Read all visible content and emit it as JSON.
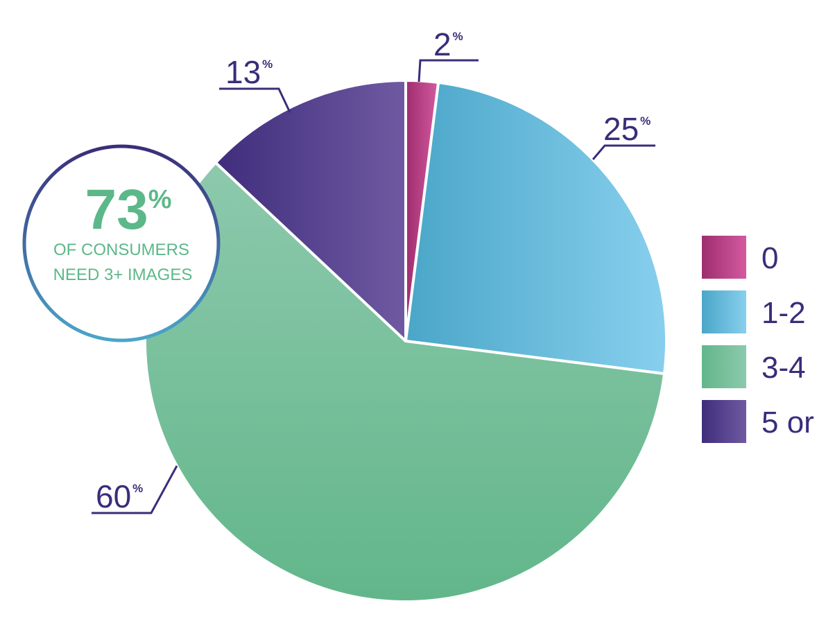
{
  "chart_data": {
    "type": "pie",
    "title": "",
    "categories": [
      "0",
      "1-2",
      "3-4",
      "5 or"
    ],
    "values": [
      2,
      25,
      60,
      13
    ],
    "value_labels": [
      {
        "number": "2",
        "unit": "%"
      },
      {
        "number": "25",
        "unit": "%"
      },
      {
        "number": "60",
        "unit": "%"
      },
      {
        "number": "13",
        "unit": "%"
      }
    ],
    "colors": [
      [
        "#9e2d6e",
        "#d45aa0"
      ],
      [
        "#4aa6c8",
        "#88cfee"
      ],
      [
        "#62b68a",
        "#8dc9ad"
      ],
      [
        "#3f2d7c",
        "#6f5aa2"
      ]
    ],
    "start_angle_deg": 0,
    "direction": "clockwise",
    "legend_position": "right",
    "callout": {
      "number": "73",
      "unit": "%",
      "line1": "OF CONSUMERS",
      "line2": "NEED 3+ IMAGES"
    }
  },
  "palette": {
    "text": "#3a2d7a",
    "callout_green": "#5cb889",
    "callout_ring_top": "#3a2d7a",
    "callout_ring_bottom": "#4aa6c8"
  }
}
